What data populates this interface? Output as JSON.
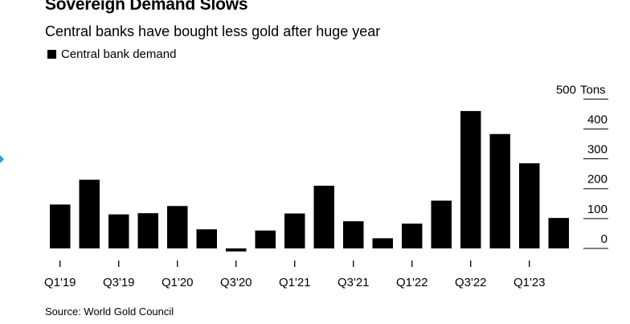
{
  "header": {
    "title": "Sovereign Demand Slows",
    "subtitle": "Central banks have bought less gold after huge year"
  },
  "legend": {
    "label": "Central bank demand"
  },
  "source": "Source: World Gold Council",
  "colors": {
    "bar": "#000000",
    "marker": "#19a6d4"
  },
  "chart_data": {
    "type": "bar",
    "categories": [
      "Q1'19",
      "Q2'19",
      "Q3'19",
      "Q4'19",
      "Q1'20",
      "Q2'20",
      "Q3'20",
      "Q4'20",
      "Q1'21",
      "Q2'21",
      "Q3'21",
      "Q4'21",
      "Q1'22",
      "Q2'22",
      "Q3'22",
      "Q4'22",
      "Q1'23",
      "Q2'23"
    ],
    "series": [
      {
        "name": "Central bank demand",
        "values": [
          147,
          230,
          114,
          118,
          142,
          64,
          -10,
          60,
          117,
          210,
          91,
          34,
          83,
          160,
          460,
          383,
          285,
          102
        ]
      }
    ],
    "x_tick_labels": [
      "Q1'19",
      "Q3'19",
      "Q1'20",
      "Q3'20",
      "Q1'21",
      "Q3'21",
      "Q1'22",
      "Q3'22",
      "Q1'23"
    ],
    "y_ticks": [
      0,
      100,
      200,
      300,
      400,
      500
    ],
    "ylabel": "Tons",
    "ylim": [
      -20,
      500
    ],
    "grid": false,
    "legend_position": "top-left"
  }
}
